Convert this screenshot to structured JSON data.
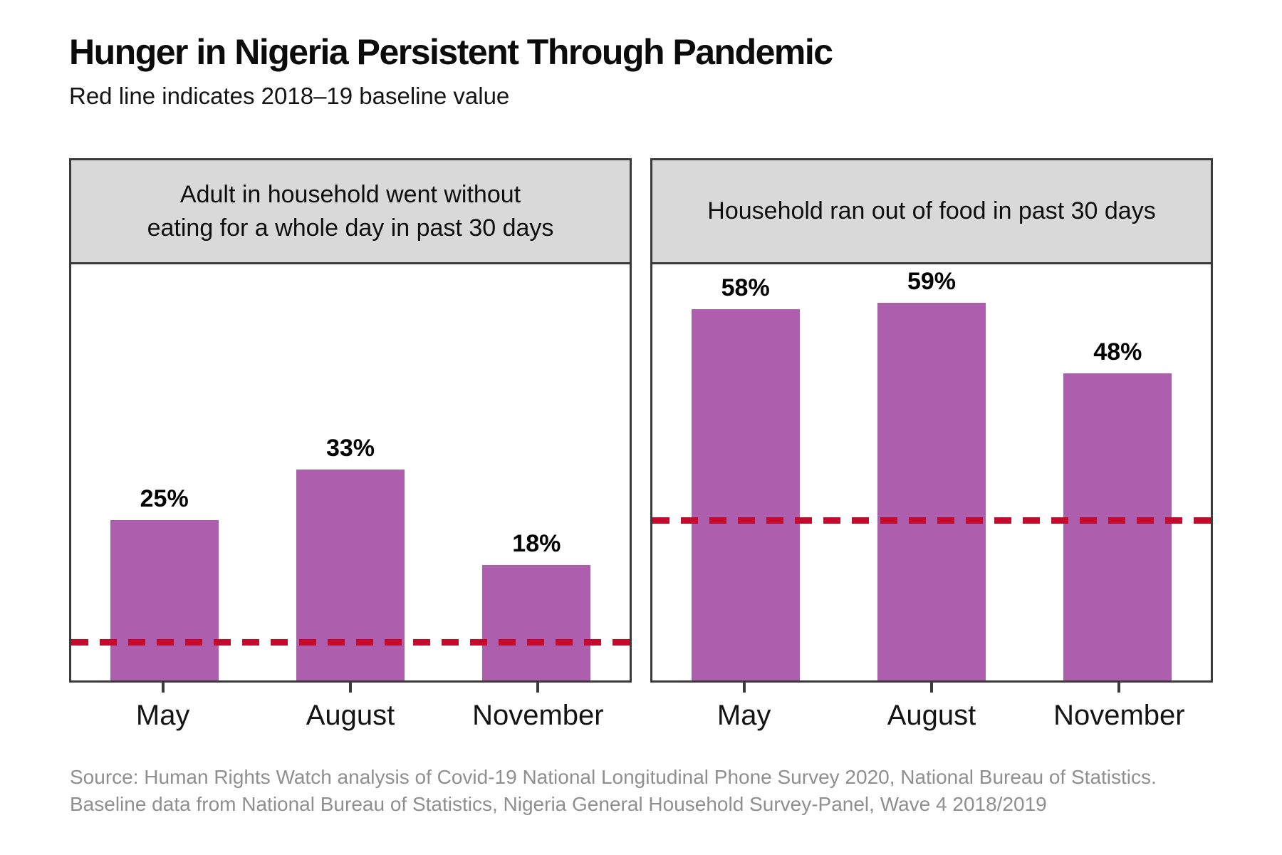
{
  "title": "Hunger in Nigeria Persistent Through Pandemic",
  "subtitle": "Red line indicates 2018–19 baseline value",
  "source": {
    "line1": "Source: Human Rights Watch analysis of Covid-19 National Longitudinal Phone Survey 2020, National Bureau of Statistics.",
    "line2": "Baseline data from National Bureau of Statistics, Nigeria General Household Survey-Panel, Wave 4 2018/2019"
  },
  "colors": {
    "bar": "#ad5fad",
    "baseline_line": "#c40a2d",
    "panel_border": "#3b3b3b",
    "panel_header_bg": "#d9d9d9",
    "source_text": "#8f8f8f"
  },
  "chart_data": [
    {
      "type": "bar",
      "title_lines": [
        "Adult in household went without",
        "eating for a whole day in past 30 days"
      ],
      "categories": [
        "May",
        "August",
        "November"
      ],
      "values": [
        25,
        33,
        18
      ],
      "value_labels": [
        "25%",
        "33%",
        "18%"
      ],
      "baseline_value": 6,
      "ylim": [
        0,
        65
      ],
      "grid": false,
      "legend": "none"
    },
    {
      "type": "bar",
      "title_lines": [
        "Household ran out of food in past 30 days"
      ],
      "categories": [
        "May",
        "August",
        "November"
      ],
      "values": [
        58,
        59,
        48
      ],
      "value_labels": [
        "58%",
        "59%",
        "48%"
      ],
      "baseline_value": 25,
      "ylim": [
        0,
        65
      ],
      "grid": false,
      "legend": "none"
    }
  ]
}
